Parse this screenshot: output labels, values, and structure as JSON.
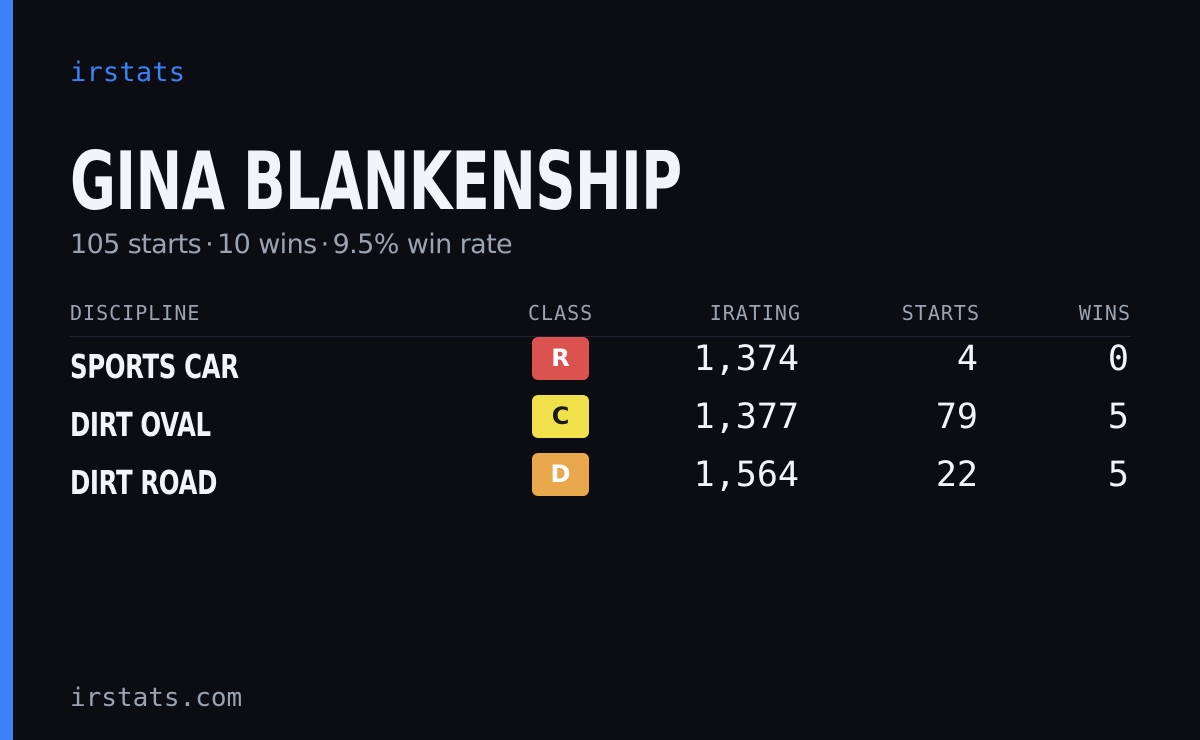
{
  "brand": "irstats",
  "driver": {
    "name": "GINA BLANKENSHIP",
    "summary": {
      "starts": "105 starts",
      "wins": "10 wins",
      "win_rate": "9.5% win rate",
      "separator": "·"
    }
  },
  "table": {
    "headers": {
      "discipline": "DISCIPLINE",
      "class": "CLASS",
      "irating": "IRATING",
      "starts": "STARTS",
      "wins": "WINS"
    },
    "rows": [
      {
        "discipline": "SPORTS CAR",
        "class": "R",
        "class_color": "#dc524f",
        "class_text_color": "#ffffff",
        "irating": "1,374",
        "starts": "4",
        "wins": "0"
      },
      {
        "discipline": "DIRT OVAL",
        "class": "C",
        "class_color": "#f0e04a",
        "class_text_color": "#1a1a1a",
        "irating": "1,377",
        "starts": "79",
        "wins": "5"
      },
      {
        "discipline": "DIRT ROAD",
        "class": "D",
        "class_color": "#eaa84c",
        "class_text_color": "#ffffff",
        "irating": "1,564",
        "starts": "22",
        "wins": "5"
      }
    ]
  },
  "footer": "irstats.com",
  "colors": {
    "background": "#0b0d13",
    "accent": "#3b82f6",
    "text_primary": "#f2f4f8",
    "text_muted": "#9aa3b2"
  }
}
